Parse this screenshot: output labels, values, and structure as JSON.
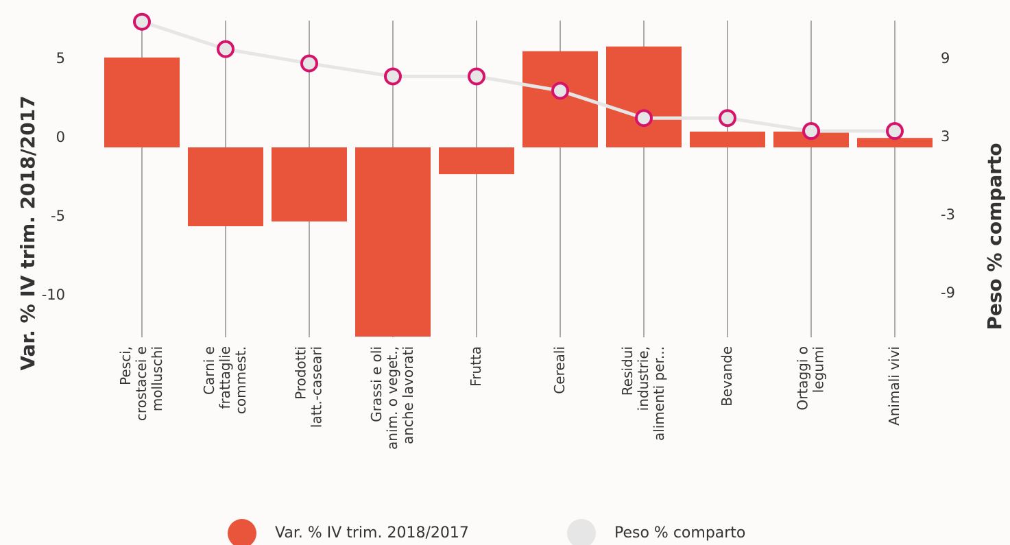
{
  "chart_data": {
    "type": "bar-line",
    "categories": [
      "Pesci,\ncrostacei e\nmolluschi",
      "Carni e\nfrattaglie\ncommest.",
      "Prodotti\nlatt.-caseari",
      "Grassi e oli\nanim. o veget.,\nanche lavorati",
      "Frutta",
      "Cereali",
      "Residui\nindustrie,\nalimenti per...",
      "Bevande",
      "Ortaggi o\nlegumi",
      "Animali vivi"
    ],
    "series": [
      {
        "name": "Var. % IV trim. 2018/2017",
        "type": "bar",
        "color": "#e8553a",
        "values": [
          5.7,
          -5.0,
          -4.7,
          -12.0,
          -1.7,
          6.1,
          6.4,
          1.0,
          1.0,
          0.6
        ]
      },
      {
        "name": "Peso % comparto",
        "type": "line",
        "axis": "y2",
        "color": "#e6e6e6",
        "marker_color": "#d6136b",
        "values": [
          12.6,
          10.5,
          9.4,
          8.4,
          8.4,
          7.3,
          5.2,
          5.2,
          4.2,
          4.2
        ]
      }
    ],
    "ylabel": "Var. % IV trim. 2018/2017",
    "y2label": "Peso % comparto",
    "ylim": [
      -12.5,
      9
    ],
    "yticks": [
      -10,
      -5,
      0,
      5
    ],
    "y2lim": [
      -12.2,
      13.85
    ],
    "y2ticks": [
      -9,
      -3,
      3,
      9
    ],
    "legend": "bottom"
  }
}
